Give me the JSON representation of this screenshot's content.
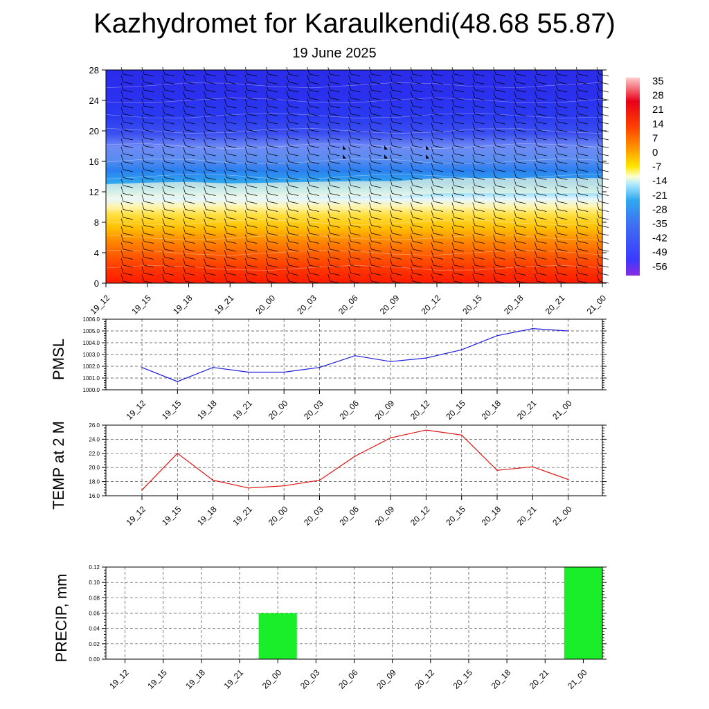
{
  "header": {
    "title": "Kazhydromet for Karaulkendi(48.68 55.87)",
    "subtitle": "19 June 2025"
  },
  "colorbar": {
    "labels": [
      "35",
      "28",
      "21",
      "14",
      "7",
      "0",
      "-7",
      "-14",
      "-21",
      "-28",
      "-35",
      "-42",
      "-49",
      "-56"
    ]
  },
  "colors": {
    "pmsl_line": "#1a1adb",
    "temp_line": "#e01010",
    "precip_bar": "#1aee2a"
  },
  "chart_data": [
    {
      "type": "heatmap",
      "title": "",
      "xlabel": "",
      "ylabel": "",
      "x": [
        "19_12",
        "19_15",
        "19_18",
        "19_21",
        "20_00",
        "20_03",
        "20_06",
        "20_09",
        "20_12",
        "20_15",
        "20_18",
        "20_21",
        "21_00"
      ],
      "yticks": [
        0,
        4,
        8,
        12,
        16,
        20,
        24,
        28
      ],
      "ylim": [
        0,
        28
      ],
      "zlim": [
        -56,
        35
      ],
      "freezing_level": [
        12.2,
        12.4,
        12.5,
        12.3,
        12.4,
        12.5,
        12.6,
        12.6,
        13.0,
        13.0,
        13.0,
        13.0,
        13.0
      ],
      "legend": "colorbar right"
    },
    {
      "type": "line",
      "ylabel": "PMSL",
      "x": [
        "19_12",
        "19_15",
        "19_18",
        "19_21",
        "20_00",
        "20_03",
        "20_06",
        "20_09",
        "20_12",
        "20_15",
        "20_18",
        "20_21",
        "21_00"
      ],
      "yticks": [
        "1000.0",
        "1001.0",
        "1002.0",
        "1003.0",
        "1004.0",
        "1005.0",
        "1006.0"
      ],
      "ylim": [
        1000,
        1006
      ],
      "series": [
        {
          "values": [
            1001.9,
            1000.7,
            1001.9,
            1001.5,
            1001.5,
            1001.9,
            1002.9,
            1002.4,
            1002.7,
            1003.4,
            1004.6,
            1005.2,
            1005.0
          ]
        }
      ],
      "grid": true
    },
    {
      "type": "line",
      "ylabel": "TEMP at 2 M",
      "x": [
        "19_12",
        "19_15",
        "19_18",
        "19_21",
        "20_00",
        "20_03",
        "20_06",
        "20_09",
        "20_12",
        "20_15",
        "20_18",
        "20_21",
        "21_00"
      ],
      "yticks": [
        "16.0",
        "18.0",
        "20.0",
        "22.0",
        "24.0",
        "26.0"
      ],
      "ylim": [
        16,
        26
      ],
      "series": [
        {
          "values": [
            16.8,
            22.0,
            18.2,
            17.1,
            17.4,
            18.2,
            21.6,
            24.2,
            25.3,
            24.6,
            19.6,
            20.1,
            18.3
          ]
        }
      ],
      "grid": true
    },
    {
      "type": "bar",
      "ylabel": "PRECIP, mm",
      "categories": [
        "19_12",
        "19_15",
        "19_18",
        "19_21",
        "20_00",
        "20_03",
        "20_06",
        "20_09",
        "20_12",
        "20_15",
        "20_18",
        "20_21",
        "21_00"
      ],
      "yticks": [
        "0.00",
        "0.02",
        "0.04",
        "0.06",
        "0.08",
        "0.10",
        "0.12"
      ],
      "ylim": [
        0,
        0.12
      ],
      "values": [
        0,
        0,
        0,
        0,
        0.06,
        0,
        0,
        0,
        0,
        0,
        0,
        0,
        0.12
      ],
      "grid": true
    }
  ]
}
